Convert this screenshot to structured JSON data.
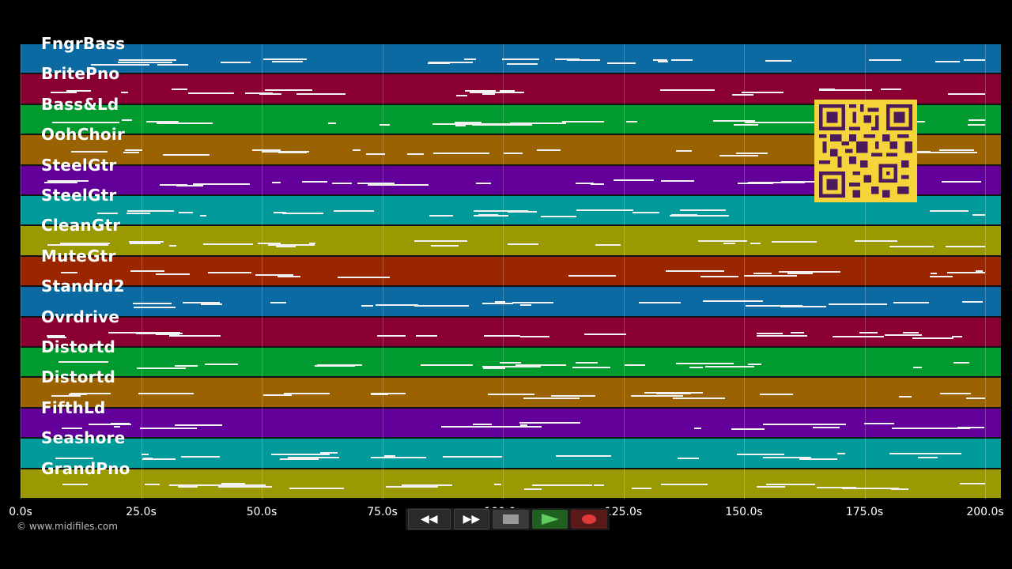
{
  "tracks": [
    {
      "name": "FngrBass",
      "color": "#0b6aa2"
    },
    {
      "name": "BritePno",
      "color": "#8a0033"
    },
    {
      "name": "Bass&Ld",
      "color": "#009a2e"
    },
    {
      "name": "OohChoir",
      "color": "#9a6200"
    },
    {
      "name": "SteelGtr",
      "color": "#63009a"
    },
    {
      "name": "SteelGtr",
      "color": "#009a9a"
    },
    {
      "name": "CleanGtr",
      "color": "#9a9a00"
    },
    {
      "name": "MuteGtr",
      "color": "#9a2600"
    },
    {
      "name": "Standrd2",
      "color": "#0b6aa2"
    },
    {
      "name": "Ovrdrive",
      "color": "#8a0033"
    },
    {
      "name": "Distortd",
      "color": "#009a2e"
    },
    {
      "name": "Distortd",
      "color": "#9a6200"
    },
    {
      "name": "FifthLd",
      "color": "#63009a"
    },
    {
      "name": "Seashore",
      "color": "#009a9a"
    },
    {
      "name": "GrandPno",
      "color": "#9a9a00"
    }
  ],
  "time_axis": {
    "min": 0,
    "max": 200,
    "ticks": [
      "0.0s",
      "25.0s",
      "50.0s",
      "75.0s",
      "100.0s",
      "125.0s",
      "150.0s",
      "175.0s",
      "200.0s"
    ]
  },
  "copyright": "© www.midifiles.com",
  "transport": {
    "rewind_icon": "rewind-icon",
    "fast_forward_icon": "fast-forward-icon",
    "stop_icon": "stop-icon",
    "play_icon": "play-icon",
    "record_icon": "record-icon",
    "play_color": "#3a9a3a",
    "record_color": "#e03a3a"
  },
  "qr_color": "#f5d33a"
}
